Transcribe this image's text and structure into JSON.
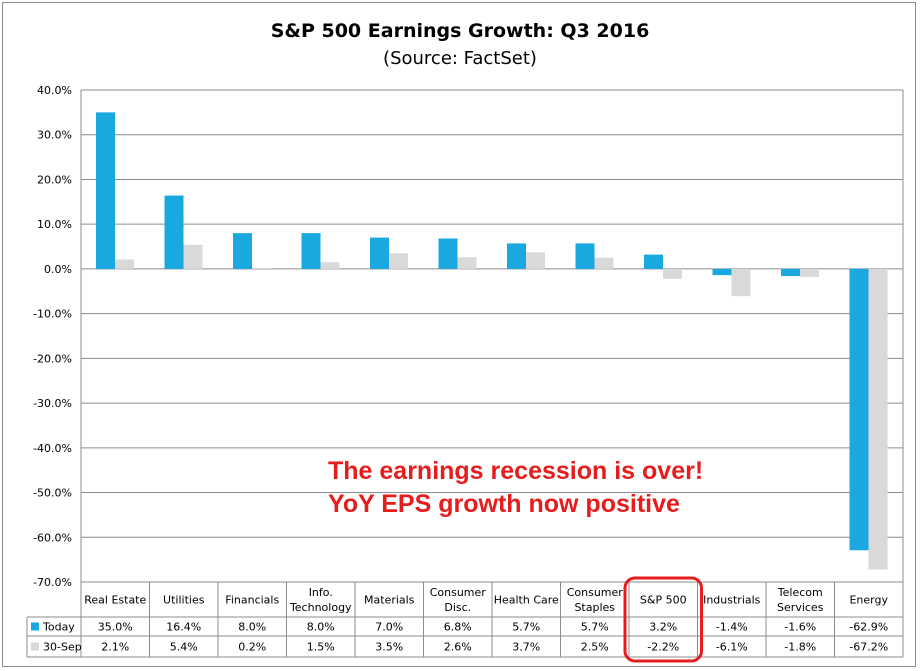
{
  "title": "S&P 500 Earnings Growth: Q3 2016",
  "subtitle": "(Source: FactSet)",
  "annotation": {
    "line1": "The earnings recession is over!",
    "line2": "YoY EPS growth now positive"
  },
  "colors": {
    "today": "#1aa8e0",
    "sep30": "#d9d9d9",
    "highlight": "#e51d1d",
    "grid": "#8c8c8c"
  },
  "chart_data": {
    "type": "bar",
    "title": "S&P 500 Earnings Growth: Q3 2016",
    "subtitle": "(Source: FactSet)",
    "categories": [
      [
        "Real Estate"
      ],
      [
        "Utilities"
      ],
      [
        "Financials"
      ],
      [
        "Info.",
        "Technology"
      ],
      [
        "Materials"
      ],
      [
        "Consumer",
        "Disc."
      ],
      [
        "Health Care"
      ],
      [
        "Consumer",
        "Staples"
      ],
      [
        "S&P 500"
      ],
      [
        "Industrials"
      ],
      [
        "Telecom",
        "Services"
      ],
      [
        "Energy"
      ]
    ],
    "series": [
      {
        "name": "Today",
        "values": [
          35.0,
          16.4,
          8.0,
          8.0,
          7.0,
          6.8,
          5.7,
          5.7,
          3.2,
          -1.4,
          -1.6,
          -62.9
        ],
        "labels": [
          "35.0%",
          "16.4%",
          "8.0%",
          "8.0%",
          "7.0%",
          "6.8%",
          "5.7%",
          "5.7%",
          "3.2%",
          "-1.4%",
          "-1.6%",
          "-62.9%"
        ]
      },
      {
        "name": "30-Sep",
        "values": [
          2.1,
          5.4,
          0.2,
          1.5,
          3.5,
          2.6,
          3.7,
          2.5,
          -2.2,
          -6.1,
          -1.8,
          -67.2
        ],
        "labels": [
          "2.1%",
          "5.4%",
          "0.2%",
          "1.5%",
          "3.5%",
          "2.6%",
          "3.7%",
          "2.5%",
          "-2.2%",
          "-6.1%",
          "-1.8%",
          "-67.2%"
        ]
      }
    ],
    "yticks": [
      "40.0%",
      "30.0%",
      "20.0%",
      "10.0%",
      "0.0%",
      "-10.0%",
      "-20.0%",
      "-30.0%",
      "-40.0%",
      "-50.0%",
      "-60.0%",
      "-70.0%"
    ],
    "ylim": [
      -70,
      40
    ],
    "grid": true,
    "legend": "data table below chart",
    "highlighted_category": "S&P 500"
  }
}
